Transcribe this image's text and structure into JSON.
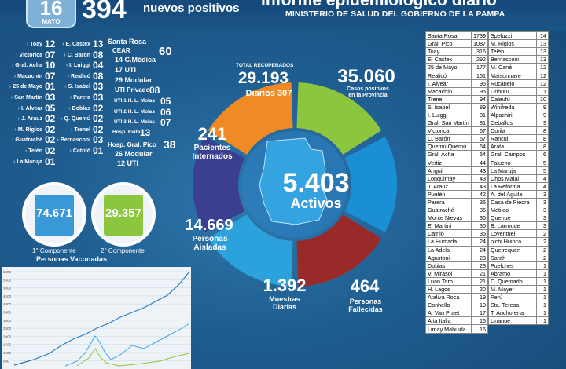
{
  "header": {
    "day": "16",
    "month": "MAYO",
    "new_cases": "394",
    "new_cases_label": "nuevos positivos",
    "title": "Informe epidemiológico diario",
    "subtitle": "MINISTERIO DE SALUD DEL GOBIERNO DE LA PAMPA"
  },
  "locality_left": [
    {
      "name": "Toay",
      "value": "12"
    },
    {
      "name": "Victorica",
      "value": "07"
    },
    {
      "name": "Gral. Acha",
      "value": "10"
    },
    {
      "name": "Macachín",
      "value": "07"
    },
    {
      "name": "25 de Mayo",
      "value": "01"
    },
    {
      "name": "San Martín",
      "value": "03"
    },
    {
      "name": "I. Alvear",
      "value": "05"
    },
    {
      "name": "J. Arauz",
      "value": "02"
    },
    {
      "name": "M. Riglos",
      "value": "02"
    },
    {
      "name": "Guatraché",
      "value": "02"
    },
    {
      "name": "Telén",
      "value": "02"
    },
    {
      "name": "La Maruja",
      "value": "01"
    }
  ],
  "locality_mid": [
    {
      "name": "E. Castex",
      "value": "13"
    },
    {
      "name": "C. Barón",
      "value": "08"
    },
    {
      "name": "I. Luiggi",
      "value": "04"
    },
    {
      "name": "Realicó",
      "value": "08"
    },
    {
      "name": "S. Isabel",
      "value": "03"
    },
    {
      "name": "Parera",
      "value": "03"
    },
    {
      "name": "Doblas",
      "value": "02"
    },
    {
      "name": "Q. Quemú",
      "value": "02"
    },
    {
      "name": "Trenel",
      "value": "02"
    },
    {
      "name": "Bernasconi",
      "value": "03"
    },
    {
      "name": "Catriló",
      "value": "01"
    }
  ],
  "santa_rosa": {
    "label": "Santa Rosa",
    "cear_label": "CEAR",
    "cear_value": "60",
    "items": [
      {
        "value": "14",
        "label": "C.Médica"
      },
      {
        "value": "17",
        "label": "UTI"
      },
      {
        "value": "29",
        "label": "Modular"
      }
    ],
    "uti_privado": {
      "label": "UTI Privado",
      "value": "08"
    },
    "molas": [
      {
        "label": "UTI 1 H. L. Molas",
        "value": "05"
      },
      {
        "label": "UTI 2 H. L. Molas",
        "value": "06"
      },
      {
        "label": "UTI 3 H. L. Molas",
        "value": "07"
      }
    ],
    "evita": {
      "label": "Hosp. Evita",
      "value": "13"
    },
    "pico": {
      "label": "Hosp. Gral. Pico",
      "value": "38",
      "modular": "26",
      "modular_label": "Modular",
      "uti": "12",
      "uti_label": "UTI"
    }
  },
  "vaccinated": {
    "first_value": "74.671",
    "first_label": "1° Componente",
    "second_value": "29.357",
    "second_label": "2° Componente",
    "caption": "Personas Vacunadas",
    "first_color": "#3a9ad9",
    "second_color": "#8cc63f"
  },
  "chart_ticks": [
    "6000",
    "5500",
    "5000",
    "4500",
    "4000",
    "3500",
    "3000",
    "2500",
    "2000",
    "1500",
    "1000",
    "500"
  ],
  "ring": {
    "recovered_title": "TOTAL RECUPERADOS",
    "recovered_value": "29.193",
    "daily_label": "Diarios",
    "daily_value": "307",
    "positives_value": "35.060",
    "positives_label_1": "Casos positivos",
    "positives_label_2": "en la Provincia",
    "interned_value": "241",
    "interned_label_1": "Pacientes",
    "interned_label_2": "Internados",
    "isolated_value": "14.669",
    "isolated_label_1": "Personas",
    "isolated_label_2": "Aisladas",
    "samples_value": "1.392",
    "samples_label_1": "Muestras",
    "samples_label_2": "Diarias",
    "deaths_value": "464",
    "deaths_label_1": "Personas",
    "deaths_label_2": "Fallecidas",
    "active_value": "5.403",
    "active_label": "Activos",
    "colors": {
      "recovered": "#8cc63f",
      "positives": "#1a8fd6",
      "interned": "#f08a24",
      "isolated": "#3a3f8f",
      "samples": "#2ba2dc",
      "deaths": "#9a2a2a"
    }
  },
  "table_left": [
    {
      "name": "Santa Rosa",
      "value": "1739"
    },
    {
      "name": "Gral. Pico",
      "value": "1087"
    },
    {
      "name": "Toay",
      "value": "316"
    },
    {
      "name": "E. Castex",
      "value": "292"
    },
    {
      "name": "25 de Mayo",
      "value": "177"
    },
    {
      "name": "Realicó",
      "value": "151"
    },
    {
      "name": "I. Alvear",
      "value": "96"
    },
    {
      "name": "Macachín",
      "value": "95"
    },
    {
      "name": "Trenel",
      "value": "94"
    },
    {
      "name": "S. Isabel",
      "value": "89"
    },
    {
      "name": "I. Luiggi",
      "value": "81"
    },
    {
      "name": "Gral. San Martín",
      "value": "81"
    },
    {
      "name": "Victorica",
      "value": "67"
    },
    {
      "name": "C. Barón",
      "value": "67"
    },
    {
      "name": "Quemú Quemú",
      "value": "64"
    },
    {
      "name": "Gral. Acha",
      "value": "54"
    },
    {
      "name": "Vertiz",
      "value": "44"
    },
    {
      "name": "Anguil",
      "value": "43"
    },
    {
      "name": "Lonquimay",
      "value": "43"
    },
    {
      "name": "J. Arauz",
      "value": "43"
    },
    {
      "name": "Puelén",
      "value": "42"
    },
    {
      "name": "Parera",
      "value": "36"
    },
    {
      "name": "Guatraché",
      "value": "36"
    },
    {
      "name": "Monte Nievas",
      "value": "36"
    },
    {
      "name": "E. Martini",
      "value": "35"
    },
    {
      "name": "Catriló",
      "value": "35"
    },
    {
      "name": "La Humada",
      "value": "24"
    },
    {
      "name": "La Adela",
      "value": "24"
    },
    {
      "name": "Agustoni",
      "value": "23"
    },
    {
      "name": "Doblas",
      "value": "23"
    },
    {
      "name": "V. Mirasol",
      "value": "21"
    },
    {
      "name": "Luan Toro",
      "value": "21"
    },
    {
      "name": "H. Lagos",
      "value": "20"
    },
    {
      "name": "Ataliva Roca",
      "value": "19"
    },
    {
      "name": "Conhello",
      "value": "19"
    },
    {
      "name": "A. Van Praet",
      "value": "17"
    },
    {
      "name": "Alta Italia",
      "value": "16"
    },
    {
      "name": "Limay Mahuida",
      "value": "16"
    }
  ],
  "table_right": [
    {
      "name": "Speluzzi",
      "value": "14"
    },
    {
      "name": "M. Riglos",
      "value": "13"
    },
    {
      "name": "Telén",
      "value": "13"
    },
    {
      "name": "Bernasconi",
      "value": "13"
    },
    {
      "name": "M. Cané",
      "value": "12"
    },
    {
      "name": "Maisonnave",
      "value": "12"
    },
    {
      "name": "Rucanelo",
      "value": "12"
    },
    {
      "name": "Uriburu",
      "value": "11"
    },
    {
      "name": "Caleufú",
      "value": "10"
    },
    {
      "name": "Winifreda",
      "value": "9"
    },
    {
      "name": "Alpachiri",
      "value": "9"
    },
    {
      "name": "Ceballos",
      "value": "9"
    },
    {
      "name": "Dorila",
      "value": "8"
    },
    {
      "name": "Rancul",
      "value": "8"
    },
    {
      "name": "Arata",
      "value": "8"
    },
    {
      "name": "Gral. Campos",
      "value": "6"
    },
    {
      "name": "Falucho",
      "value": "5"
    },
    {
      "name": "La Maruja",
      "value": "5"
    },
    {
      "name": "Chos Malal",
      "value": "4"
    },
    {
      "name": "La Reforma",
      "value": "4"
    },
    {
      "name": "A. del Águila",
      "value": "3"
    },
    {
      "name": "Casa de Piedra",
      "value": "3"
    },
    {
      "name": "Metileo",
      "value": "3"
    },
    {
      "name": "Quehue",
      "value": "3"
    },
    {
      "name": "B. Larroude",
      "value": "3"
    },
    {
      "name": "Loventuel",
      "value": "2"
    },
    {
      "name": "pichi Huinca",
      "value": "2"
    },
    {
      "name": "Quetrequén",
      "value": "2"
    },
    {
      "name": "Sarah",
      "value": "2"
    },
    {
      "name": "Puelches",
      "value": "1"
    },
    {
      "name": "Abramo",
      "value": "1"
    },
    {
      "name": "C. Quemado",
      "value": "1"
    },
    {
      "name": "M. Mayer",
      "value": "1"
    },
    {
      "name": "Perú",
      "value": "1"
    },
    {
      "name": "Sta. Teresa",
      "value": "1"
    },
    {
      "name": "T. Anchorena",
      "value": "1"
    },
    {
      "name": "Unanue",
      "value": "1"
    }
  ]
}
